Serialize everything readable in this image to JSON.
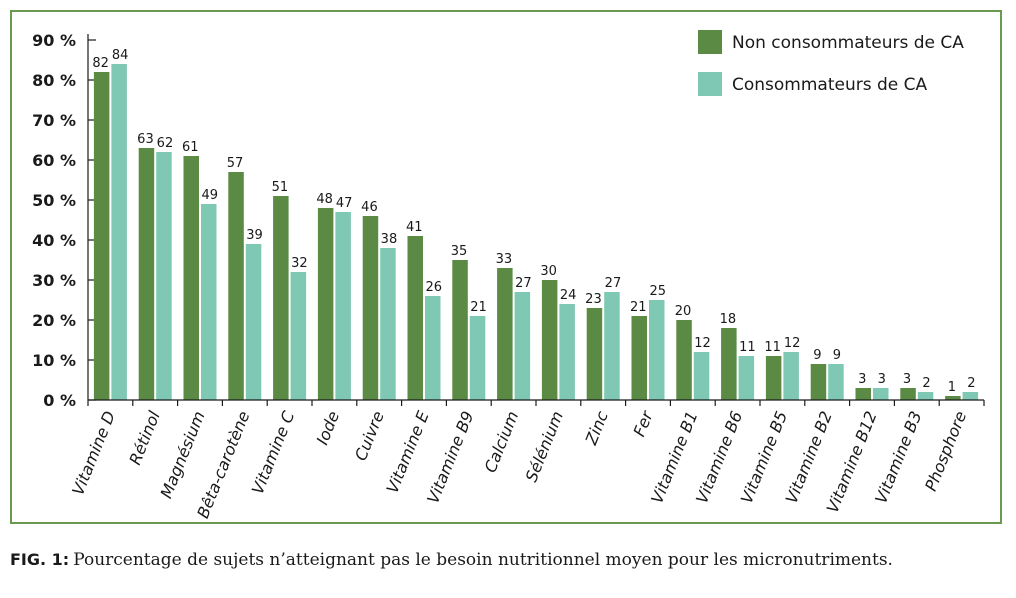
{
  "caption": {
    "label": "FIG. 1:",
    "text": "Pourcentage de sujets n’atteignant pas le besoin nutritionnel moyen pour les micronutriments."
  },
  "colors": {
    "non_consumers": "#5b8a45",
    "consumers": "#7fc9b4",
    "frame": "#6a9a50",
    "axis": "#1a1a1a"
  },
  "chart_data": {
    "type": "bar",
    "title": "",
    "xlabel": "",
    "ylabel": "",
    "ylim": [
      0,
      90
    ],
    "yticks": [
      0,
      10,
      20,
      30,
      40,
      50,
      60,
      70,
      80,
      90
    ],
    "ytick_labels": [
      "0 %",
      "10 %",
      "20 %",
      "30 %",
      "40 %",
      "50 %",
      "60 %",
      "70 %",
      "80 %",
      "90 %"
    ],
    "grid": false,
    "legend_position": "top-right",
    "categories": [
      "Vitamine D",
      "Rétinol",
      "Magnésium",
      "Bêta-carotène",
      "Vitamine C",
      "Iode",
      "Cuivre",
      "Vitamine E",
      "Vitamine B9",
      "Calcium",
      "Sélénium",
      "Zinc",
      "Fer",
      "Vitamine B1",
      "Vitamine B6",
      "Vitamine B5",
      "Vitamine B2",
      "Vitamine B12",
      "Vitamine B3",
      "Phosphore"
    ],
    "series": [
      {
        "name": "Non consommateurs de CA",
        "color": "#5b8a45",
        "values": [
          82,
          63,
          61,
          57,
          51,
          48,
          46,
          41,
          35,
          33,
          30,
          23,
          21,
          20,
          18,
          11,
          9,
          3,
          3,
          1
        ]
      },
      {
        "name": "Consommateurs de CA",
        "color": "#7fc9b4",
        "values": [
          84,
          62,
          49,
          39,
          32,
          47,
          38,
          26,
          21,
          27,
          24,
          27,
          25,
          12,
          11,
          12,
          9,
          3,
          2,
          2
        ]
      }
    ]
  }
}
